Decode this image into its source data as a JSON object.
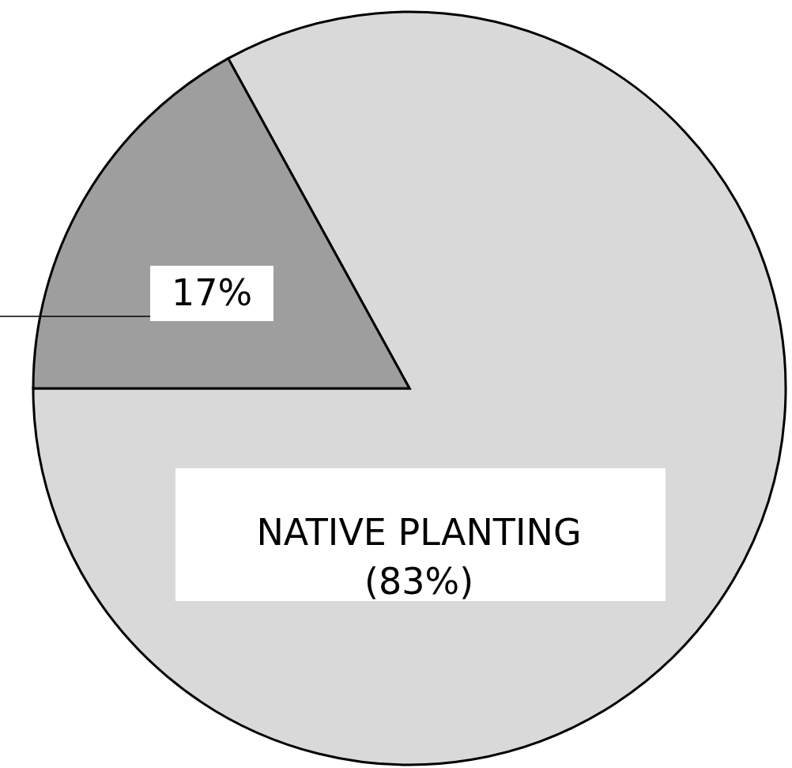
{
  "chart_data": {
    "type": "pie",
    "categories": [
      "NATIVE PLANTING",
      null
    ],
    "values": [
      83,
      17
    ],
    "colors": [
      "#d9d9d9",
      "#9e9e9e"
    ],
    "value_labels": [
      "(83%)",
      "17%"
    ]
  }
}
